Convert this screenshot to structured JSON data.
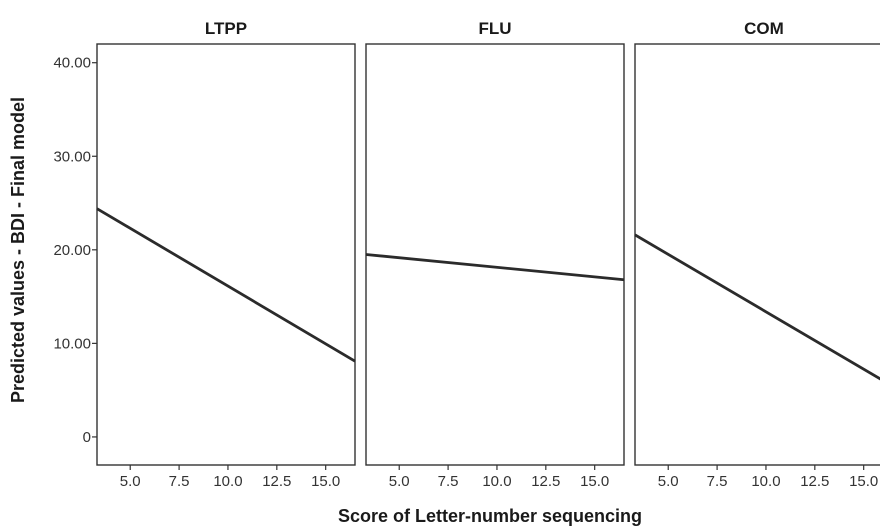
{
  "chart_data": {
    "type": "line",
    "xlabel": "Score of Letter-number sequencing",
    "ylabel": "Predicted values - BDI - Final model",
    "xlim": [
      3.3,
      16.5
    ],
    "ylim": [
      -3,
      42
    ],
    "x_ticks": [
      5.0,
      7.5,
      10.0,
      12.5,
      15.0
    ],
    "x_tick_labels": [
      "5.0",
      "7.5",
      "10.0",
      "12.5",
      "15.0"
    ],
    "y_ticks": [
      0,
      10,
      20,
      30,
      40
    ],
    "y_tick_labels": [
      "0",
      "10.00",
      "20.00",
      "30.00",
      "40.00"
    ],
    "grid": false,
    "legend": "none",
    "panels": [
      {
        "title": "LTPP",
        "x": [
          3.3,
          16.5
        ],
        "y": [
          24.4,
          8.1
        ]
      },
      {
        "title": "FLU",
        "x": [
          3.3,
          16.5
        ],
        "y": [
          19.5,
          16.8
        ]
      },
      {
        "title": "COM",
        "x": [
          3.3,
          16.5
        ],
        "y": [
          21.6,
          5.4
        ]
      }
    ],
    "colors": {
      "line": "#2b2b2b",
      "frame": "#333333",
      "text": "#1a1a1a"
    }
  }
}
